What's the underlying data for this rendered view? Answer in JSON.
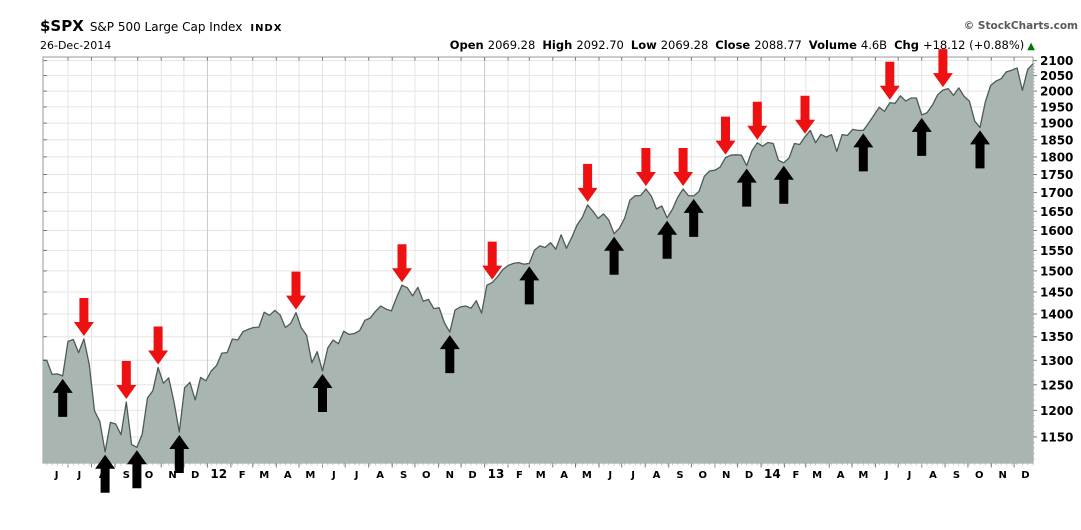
{
  "header": {
    "symbol": "$SPX",
    "name": "S&P 500 Large Cap Index",
    "exchange": "INDX",
    "date": "26-Dec-2014",
    "copyright": "© StockCharts.com",
    "quote": {
      "open_label": "Open",
      "open": "2069.28",
      "high_label": "High",
      "high": "2092.70",
      "low_label": "Low",
      "low": "2069.28",
      "close_label": "Close",
      "close": "2088.77",
      "volume_label": "Volume",
      "volume": "4.6B",
      "chg_label": "Chg",
      "chg": "+18.12 (+0.88%)",
      "direction_icon": "▲"
    }
  },
  "colors": {
    "area_fill": "#a9b5b0",
    "area_stroke": "#4e5a56",
    "grid": "#e4e4e4",
    "grid_year": "#c9c9c9",
    "axis_border": "#999999",
    "tick": "#777777",
    "tick_minor": "#c5c5c5",
    "label": "#000000",
    "buy_arrow": "#000000",
    "sell_arrow": "#ee1111",
    "up_triangle": "#007700",
    "copyright_text": "#5a5a5a"
  },
  "chart_data": {
    "type": "area",
    "title": "$SPX S&P 500 Large Cap Index weekly close",
    "x_start_date": "2011-06-03",
    "x_end_date": "2014-12-26",
    "x_interval": "weekly",
    "y_scale": "log",
    "ylim": [
      1103,
      2112
    ],
    "y_ticks": [
      1150,
      1200,
      1250,
      1300,
      1350,
      1400,
      1450,
      1500,
      1550,
      1600,
      1650,
      1700,
      1750,
      1800,
      1850,
      1900,
      1950,
      2000,
      2050,
      2100
    ],
    "x_month_labels": [
      "J",
      "J",
      "A",
      "S",
      "O",
      "N",
      "D",
      "12",
      "F",
      "M",
      "A",
      "M",
      "J",
      "J",
      "A",
      "S",
      "O",
      "N",
      "D",
      "13",
      "F",
      "M",
      "A",
      "M",
      "J",
      "J",
      "A",
      "S",
      "O",
      "N",
      "D",
      "14",
      "F",
      "M",
      "A",
      "M",
      "J",
      "J",
      "A",
      "S",
      "O",
      "N",
      "D"
    ],
    "close": [
      1300,
      1271,
      1272,
      1268,
      1340,
      1344,
      1316,
      1345,
      1292,
      1199,
      1179,
      1123,
      1177,
      1174,
      1154,
      1216,
      1136,
      1131,
      1155,
      1224,
      1238,
      1285,
      1253,
      1264,
      1216,
      1159,
      1244,
      1255,
      1220,
      1265,
      1258,
      1278,
      1289,
      1315,
      1316,
      1345,
      1343,
      1361,
      1366,
      1370,
      1371,
      1404,
      1397,
      1408,
      1398,
      1370,
      1379,
      1403,
      1369,
      1353,
      1295,
      1318,
      1278,
      1326,
      1343,
      1335,
      1362,
      1355,
      1357,
      1363,
      1386,
      1391,
      1406,
      1418,
      1411,
      1407,
      1438,
      1466,
      1460,
      1441,
      1461,
      1429,
      1433,
      1412,
      1414,
      1380,
      1360,
      1409,
      1416,
      1418,
      1413,
      1430,
      1402,
      1466,
      1472,
      1486,
      1503,
      1513,
      1518,
      1520,
      1516,
      1518,
      1551,
      1561,
      1557,
      1569,
      1553,
      1589,
      1555,
      1582,
      1614,
      1634,
      1667,
      1650,
      1631,
      1643,
      1627,
      1592,
      1606,
      1632,
      1680,
      1692,
      1692,
      1710,
      1691,
      1656,
      1664,
      1633,
      1655,
      1688,
      1710,
      1692,
      1691,
      1703,
      1745,
      1760,
      1762,
      1771,
      1798,
      1805,
      1806,
      1805,
      1775,
      1818,
      1841,
      1831,
      1842,
      1839,
      1790,
      1783,
      1797,
      1839,
      1836,
      1859,
      1878,
      1841,
      1866,
      1858,
      1865,
      1816,
      1865,
      1863,
      1881,
      1878,
      1878,
      1900,
      1924,
      1949,
      1936,
      1963,
      1961,
      1985,
      1968,
      1978,
      1978,
      1925,
      1932,
      1955,
      1988,
      2003,
      2008,
      1986,
      2010,
      1983,
      1968,
      1906,
      1887,
      1965,
      2018,
      2032,
      2040,
      2063,
      2068,
      2075,
      2002,
      2071,
      2089
    ],
    "signals": {
      "buy_weeks": [
        {
          "week": 3,
          "date": "2011-06-24"
        },
        {
          "week": 11,
          "date": "2011-08-19"
        },
        {
          "week": 17,
          "date": "2011-09-30"
        },
        {
          "week": 25,
          "date": "2011-11-25"
        },
        {
          "week": 52,
          "date": "2012-06-01"
        },
        {
          "week": 76,
          "date": "2012-11-16"
        },
        {
          "week": 91,
          "date": "2013-03-01"
        },
        {
          "week": 107,
          "date": "2013-06-21"
        },
        {
          "week": 117,
          "date": "2013-08-30"
        },
        {
          "week": 122,
          "date": "2013-10-04"
        },
        {
          "week": 132,
          "date": "2013-12-13"
        },
        {
          "week": 139,
          "date": "2014-01-31"
        },
        {
          "week": 154,
          "date": "2014-05-16"
        },
        {
          "week": 165,
          "date": "2014-08-01"
        },
        {
          "week": 176,
          "date": "2014-10-17"
        }
      ],
      "sell_weeks": [
        {
          "week": 7,
          "date": "2011-07-22"
        },
        {
          "week": 15,
          "date": "2011-09-16"
        },
        {
          "week": 21,
          "date": "2011-10-28"
        },
        {
          "week": 47,
          "date": "2012-04-27"
        },
        {
          "week": 67,
          "date": "2012-09-14"
        },
        {
          "week": 84,
          "date": "2013-01-11"
        },
        {
          "week": 102,
          "date": "2013-05-17"
        },
        {
          "week": 113,
          "date": "2013-08-02"
        },
        {
          "week": 120,
          "date": "2013-09-20"
        },
        {
          "week": 128,
          "date": "2013-11-15"
        },
        {
          "week": 134,
          "date": "2013-12-27"
        },
        {
          "week": 143,
          "date": "2014-02-28"
        },
        {
          "week": 159,
          "date": "2014-06-20"
        },
        {
          "week": 169,
          "date": "2014-08-29"
        }
      ]
    }
  }
}
